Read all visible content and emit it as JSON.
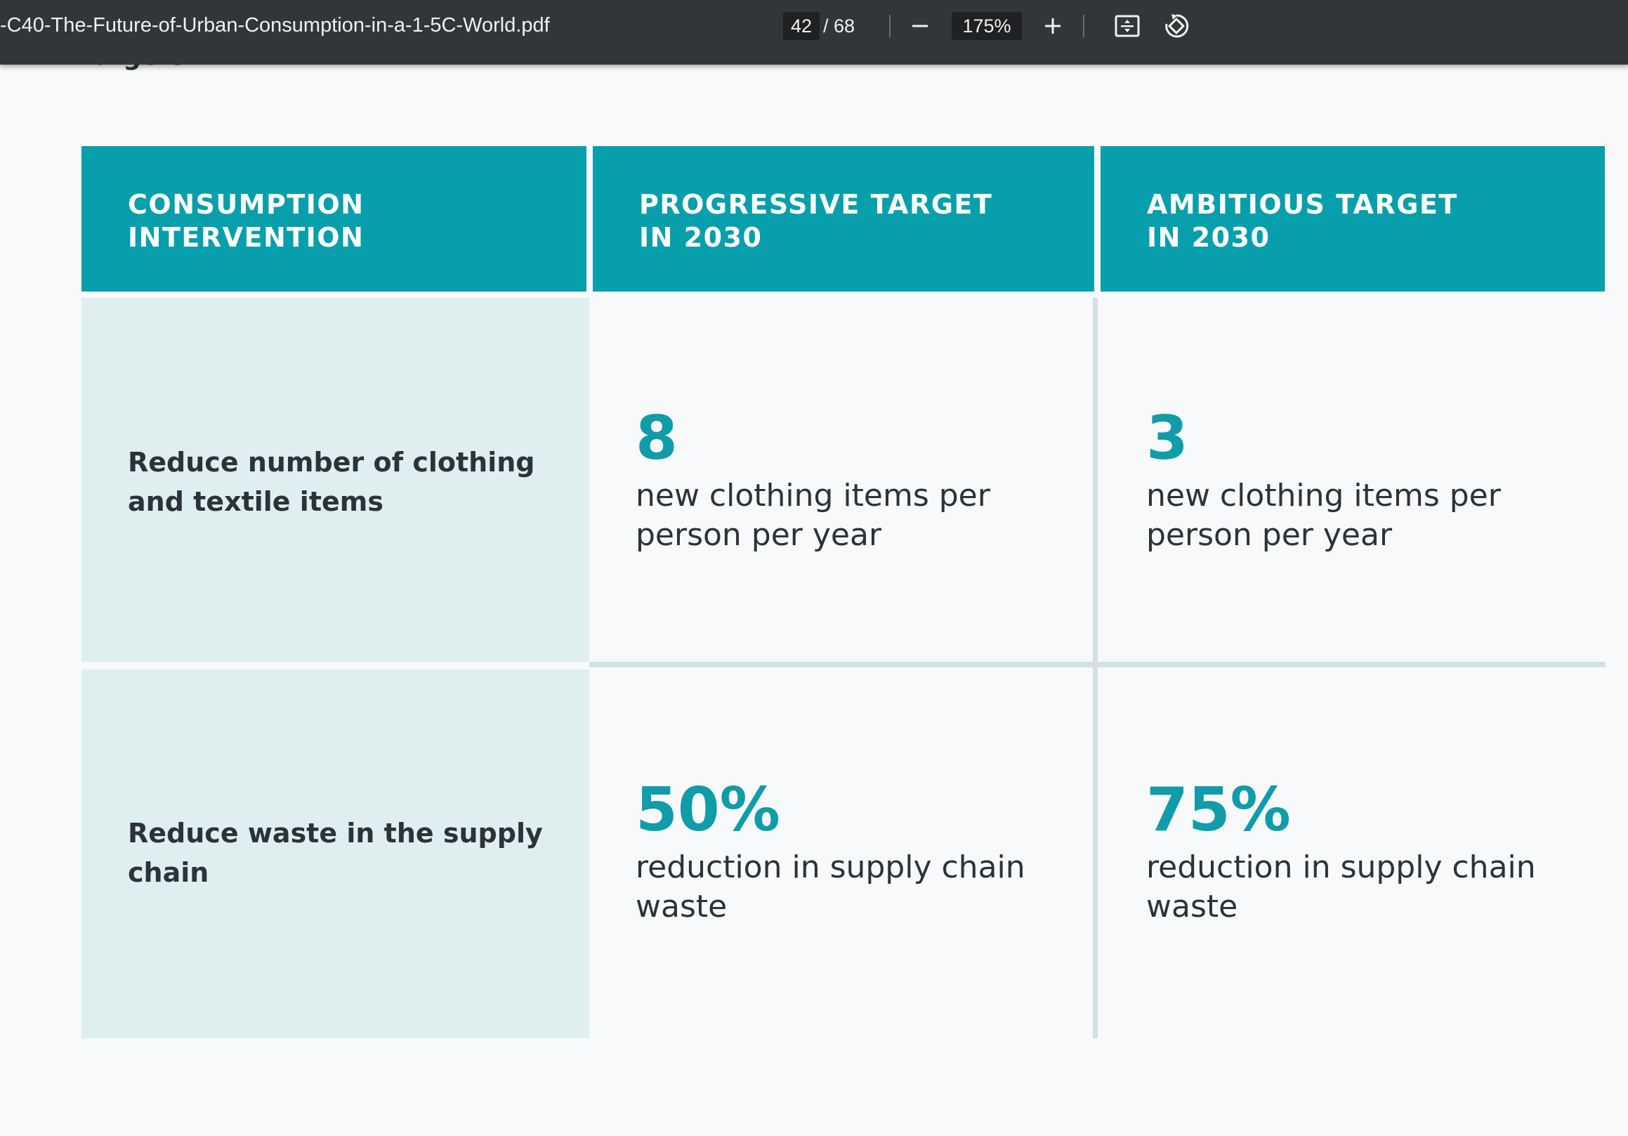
{
  "toolbar": {
    "document_title": "-C40-The-Future-of-Urban-Consumption-in-a-1-5C-World.pdf",
    "current_page": "42",
    "total_pages": "/ 68",
    "zoom_level": "175%"
  },
  "page": {
    "previous_text_fragment": "targets.",
    "table": {
      "headers": [
        "CONSUMPTION\nINTERVENTION",
        "PROGRESSIVE TARGET\nIN 2030",
        "AMBITIOUS TARGET\nIN 2030"
      ],
      "rows": [
        {
          "intervention": "Reduce number of clothing and textile items",
          "progressive_value": "8",
          "progressive_desc": "new clothing items per person per year",
          "ambitious_value": "3",
          "ambitious_desc": "new clothing items per person per year"
        },
        {
          "intervention": "Reduce waste in the supply chain",
          "progressive_value": "50%",
          "progressive_desc": "reduction in supply chain waste",
          "ambitious_value": "75%",
          "ambitious_desc": "reduction in supply chain waste"
        }
      ]
    }
  },
  "colors": {
    "header_bg": "#069fab",
    "label_bg": "#dfefef",
    "accent_number": "#109ca8",
    "toolbar_bg": "#323639"
  },
  "icons": [
    "minus-icon",
    "plus-icon",
    "fit-page-icon",
    "rotate-icon"
  ]
}
